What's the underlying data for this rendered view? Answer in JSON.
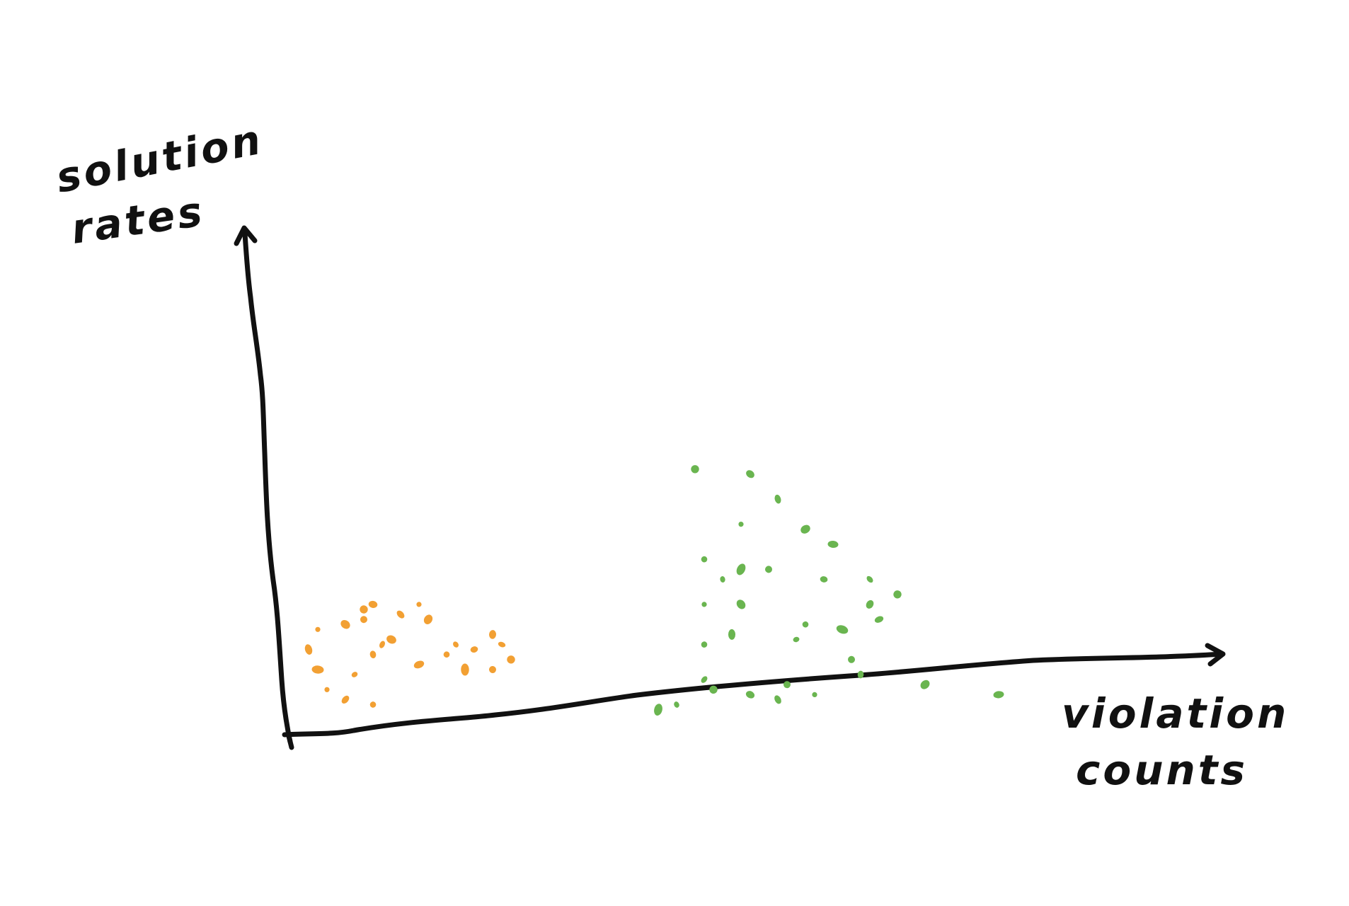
{
  "chart_data": {
    "type": "scatter",
    "style": "hand-drawn sketch",
    "ylabel_lines": [
      "solution",
      "rates"
    ],
    "xlabel_lines": [
      "violation",
      "counts"
    ],
    "grid": false,
    "ticks": false,
    "xlim": [
      0,
      100
    ],
    "ylim": [
      0,
      100
    ],
    "colors": {
      "axis": "#111111",
      "orange": "#f2a033",
      "green": "#6ab550"
    },
    "series": [
      {
        "color": "orange",
        "points": [
          [
            3,
            21
          ],
          [
            6,
            22
          ],
          [
            2,
            17
          ],
          [
            9,
            6
          ],
          [
            7,
            12
          ],
          [
            3,
            13
          ],
          [
            8,
            23
          ],
          [
            9,
            16
          ],
          [
            10,
            18
          ],
          [
            8,
            25
          ],
          [
            9,
            26
          ],
          [
            12,
            24
          ],
          [
            14,
            26
          ],
          [
            15,
            23
          ],
          [
            14,
            14
          ],
          [
            17,
            16
          ],
          [
            18,
            18
          ],
          [
            19,
            13
          ],
          [
            22,
            13
          ],
          [
            20,
            17
          ],
          [
            23,
            18
          ],
          [
            24,
            15
          ],
          [
            22,
            20
          ],
          [
            6,
            7
          ],
          [
            4,
            9
          ],
          [
            11,
            19
          ]
        ]
      },
      {
        "color": "green",
        "points": [
          [
            44,
            53
          ],
          [
            50,
            52
          ],
          [
            53,
            47
          ],
          [
            49,
            42
          ],
          [
            56,
            41
          ],
          [
            59,
            38
          ],
          [
            45,
            35
          ],
          [
            47,
            31
          ],
          [
            49,
            33
          ],
          [
            52,
            33
          ],
          [
            58,
            31
          ],
          [
            63,
            31
          ],
          [
            66,
            28
          ],
          [
            63,
            26
          ],
          [
            64,
            23
          ],
          [
            45,
            26
          ],
          [
            49,
            26
          ],
          [
            48,
            20
          ],
          [
            56,
            22
          ],
          [
            55,
            19
          ],
          [
            60,
            21
          ],
          [
            61,
            15
          ],
          [
            62,
            12
          ],
          [
            45,
            11
          ],
          [
            46,
            9
          ],
          [
            50,
            8
          ],
          [
            53,
            7
          ],
          [
            57,
            8
          ],
          [
            69,
            10
          ],
          [
            77,
            8
          ],
          [
            45,
            18
          ],
          [
            42,
            6
          ],
          [
            40,
            5
          ],
          [
            54,
            10
          ]
        ]
      }
    ]
  }
}
